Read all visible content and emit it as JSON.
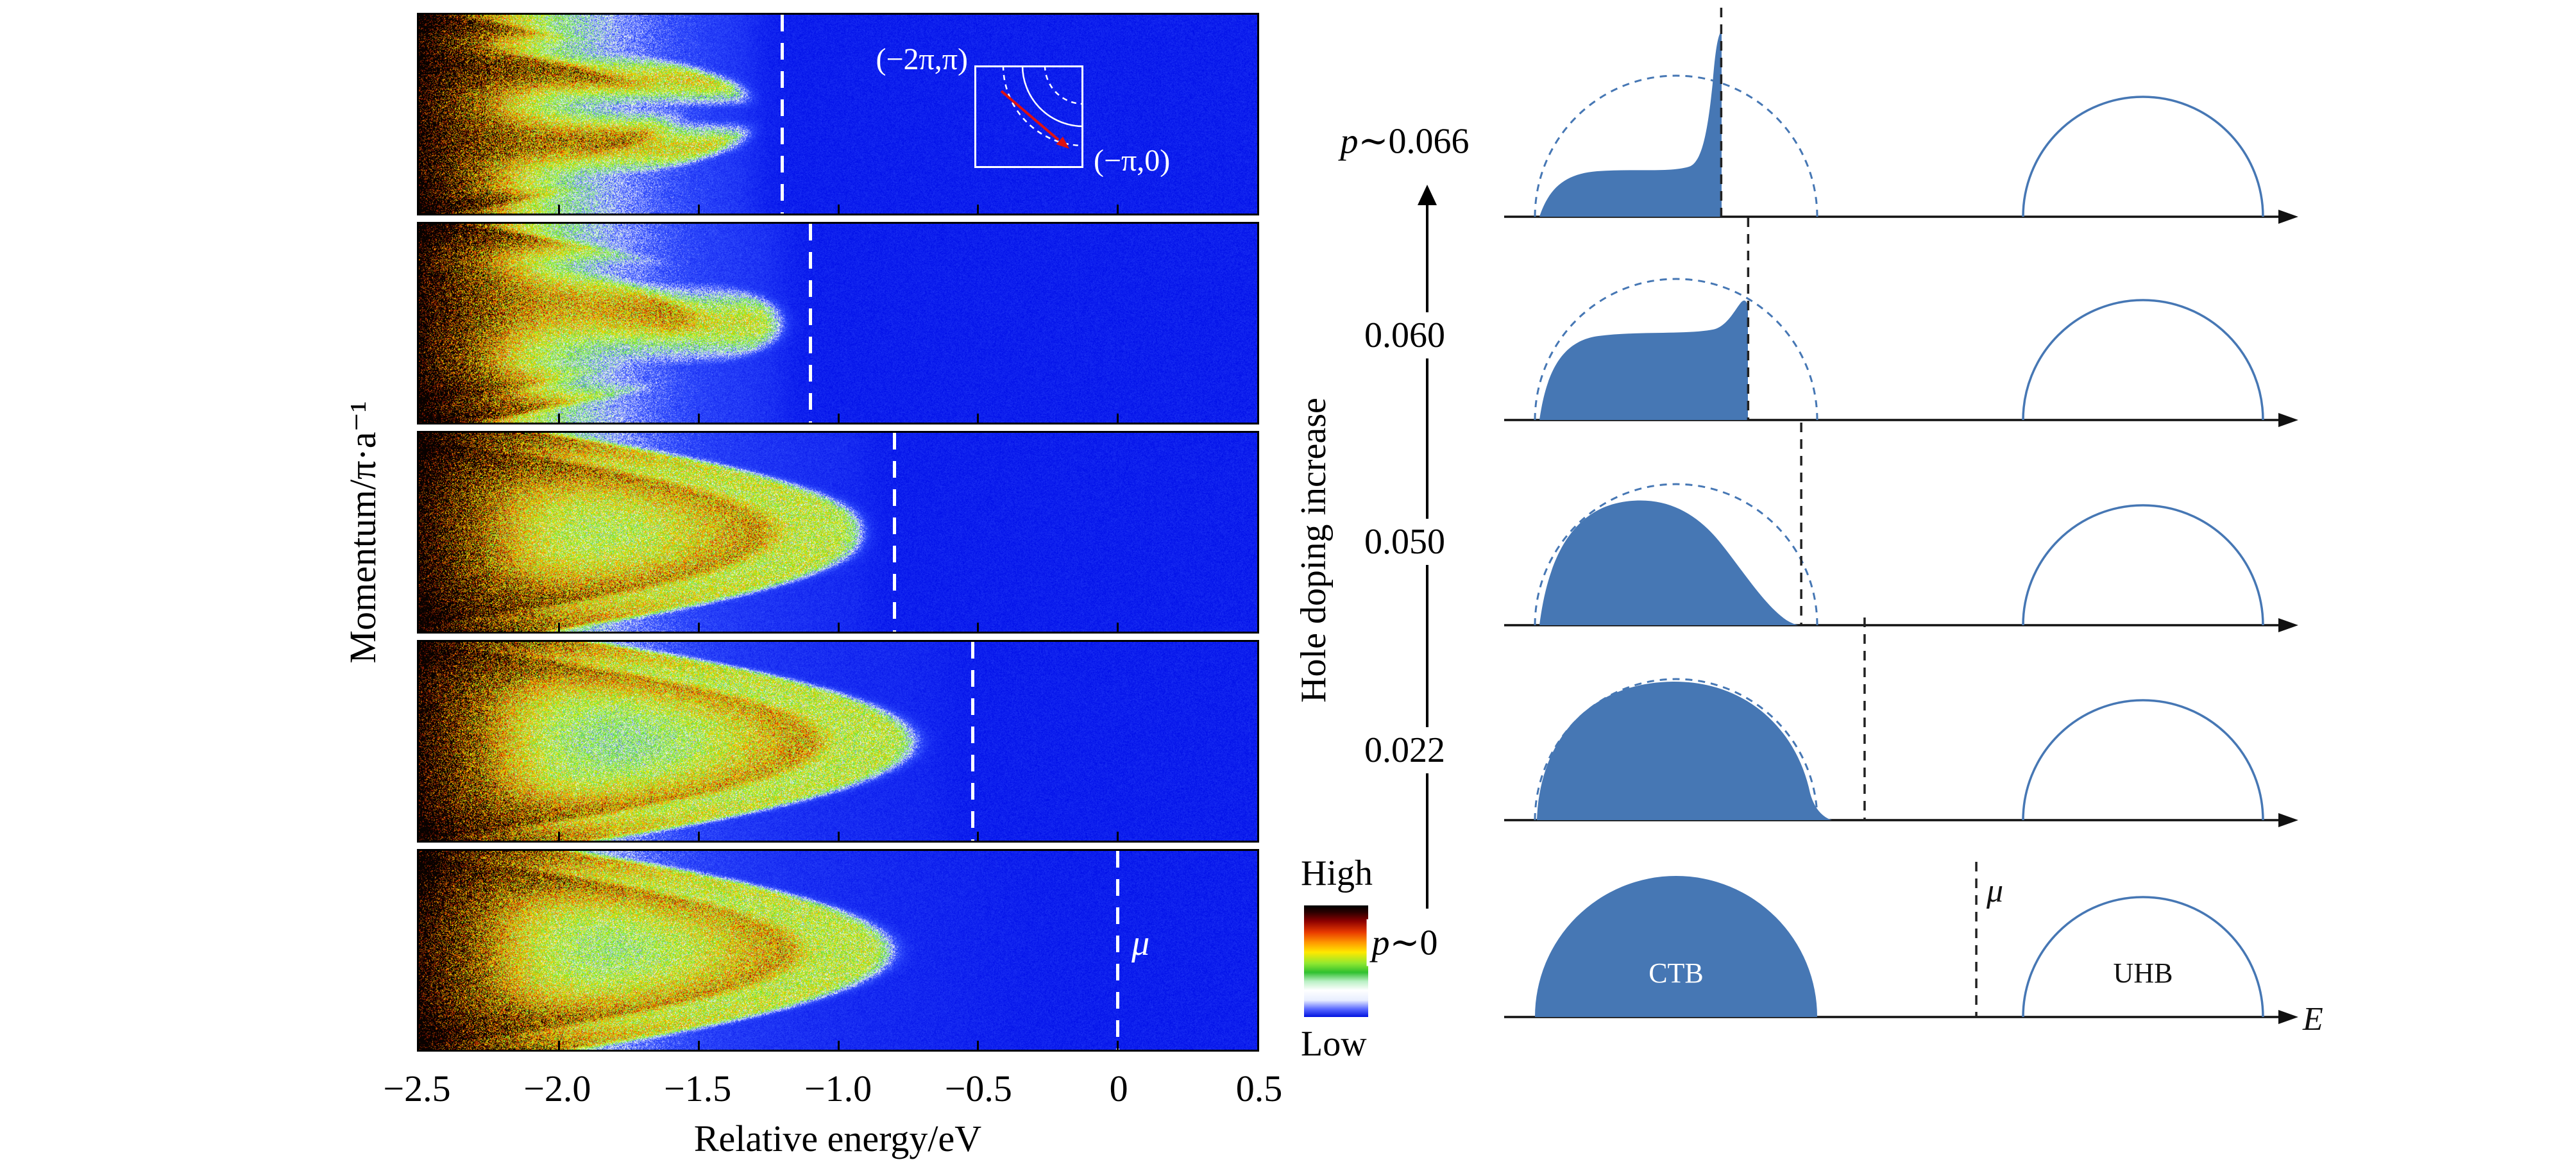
{
  "colors": {
    "diagram_blue": "#4677b4",
    "heatmap_background_blue": "#0011e8",
    "inset_cut_arrow_red": "#dd1111"
  },
  "left_chart": {
    "y_axis_title": "Momentum/π·a⁻¹",
    "x_axis_title": "Relative energy/eV",
    "x_tick_labels": [
      "−2.5",
      "−2.0",
      "−1.5",
      "−1.0",
      "−0.5",
      "0",
      "0.5"
    ],
    "mu_label": "μ",
    "inset": {
      "top_left_label": "(−2π,π)",
      "bottom_right_label": "(−π,0)"
    },
    "colorbar": {
      "high_label": "High",
      "low_label": "Low"
    }
  },
  "doping_axis": {
    "title": "Hole doping increase",
    "levels": [
      "p∼0.066",
      "0.060",
      "0.050",
      "0.022",
      "p∼0"
    ]
  },
  "dos_labels": {
    "ctb": "CTB",
    "uhb": "UHB",
    "mu": "μ",
    "energy": "E"
  },
  "chart_data": [
    {
      "type": "heatmap",
      "title": "Spectral intensity vs momentum and relative energy (five doping levels)",
      "xlabel": "Relative energy/eV",
      "ylabel": "Momentum/π·a⁻¹",
      "x_range": [
        -2.5,
        0.5
      ],
      "x_ticks": [
        -2.5,
        -2.0,
        -1.5,
        -1.0,
        -0.5,
        0,
        0.5
      ],
      "colormap_low_to_high": [
        "blue",
        "white",
        "green",
        "yellow",
        "orange",
        "red",
        "black"
      ],
      "colorbar": {
        "high_label": "High",
        "low_label": "Low"
      },
      "panels": [
        {
          "mu_eV": -1.2,
          "band_apex_eV": -1.34,
          "streaks": 3
        },
        {
          "mu_eV": -1.1,
          "band_apex_eV": -1.26,
          "streaks": 2
        },
        {
          "mu_eV": -0.8,
          "band_apex_eV": -0.97,
          "streaks": 0
        },
        {
          "mu_eV": -0.52,
          "band_apex_eV": -0.8,
          "streaks": 0
        },
        {
          "mu_eV": 0.0,
          "band_apex_eV": -0.88,
          "streaks": 0,
          "mu_label": "μ",
          "soft_cutoff_eV": -0.42
        }
      ],
      "inset": {
        "corner_labels": [
          "(−2π,π)",
          "(−π,0)"
        ],
        "content": "Brillouin-zone cut with Fermi-surface arcs and red momentum-cut arrow"
      }
    },
    {
      "type": "diagram",
      "title": "Density-of-states schematic: CTB and UHB vs hole doping",
      "energy_axis_label": "E",
      "doping_axis_title": "Hole doping increase",
      "rows": [
        {
          "doping_label": "p∼0.066",
          "mu_frac": 0.274,
          "ctb_shape": "sharp_peak",
          "dashed_semicircle": true
        },
        {
          "doping_label": "0.060",
          "mu_frac": 0.308,
          "ctb_shape": "soft_peak",
          "dashed_semicircle": true
        },
        {
          "doping_label": "0.050",
          "mu_frac": 0.375,
          "ctb_shape": "skewed_dome",
          "dashed_semicircle": true
        },
        {
          "doping_label": "0.022",
          "mu_frac": 0.455,
          "ctb_shape": "near_semicircle",
          "dashed_semicircle": true
        },
        {
          "doping_label": "p∼0",
          "mu_frac": 0.596,
          "ctb_shape": "semicircle",
          "dashed_semicircle": false,
          "ctb_label": "CTB",
          "uhb_label": "UHB",
          "mu_label": "μ"
        }
      ]
    }
  ]
}
